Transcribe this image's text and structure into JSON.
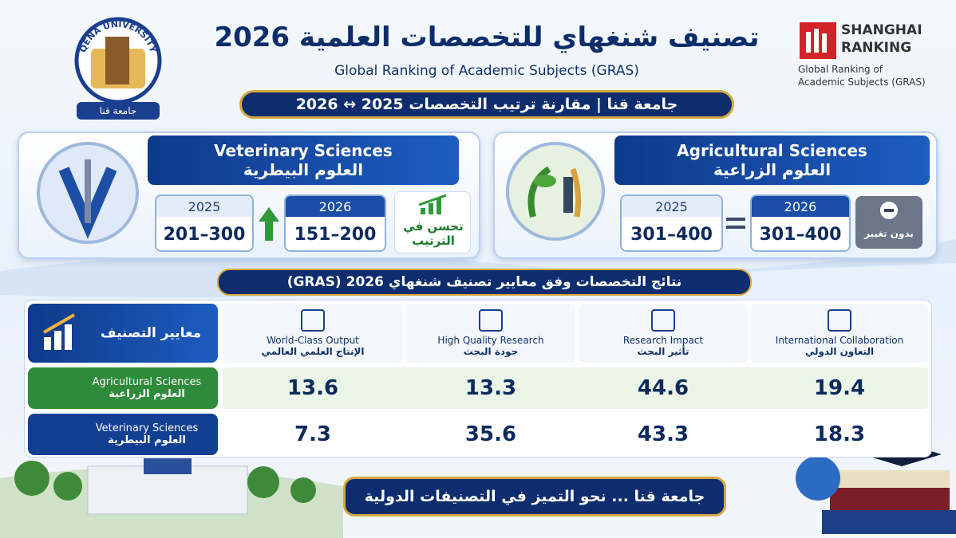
{
  "header": {
    "university_logo": {
      "arc_text": "QENA UNIVERSITY",
      "name": "جامعة قنا"
    },
    "title": "تصنيف شنغهاي للتخصصات العلمية 2026",
    "subtitle": "Global Ranking of Academic Subjects (GRAS)",
    "ribbon": "جامعة قنا | مقارنة ترتيب التخصصات 2025 ↔ 2026",
    "shanghai_logo": {
      "line1": "SHANGHAI",
      "line2": "RANKING",
      "caption_line1": "Global Ranking of",
      "caption_line2": "Academic Subjects (GRAS)"
    }
  },
  "subject_cards": [
    {
      "name_en": "Veterinary Sciences",
      "name_ar": "العلوم البيطرية",
      "rank_2025": {
        "year": "2025",
        "range": "201–300"
      },
      "rank_2026": {
        "year": "2026",
        "range": "151–200"
      },
      "status": "تحسن في الترتيب"
    },
    {
      "name_en": "Agricultural Sciences",
      "name_ar": "العلوم الزراعية",
      "rank_2025": {
        "year": "2025",
        "range": "301–400"
      },
      "rank_2026": {
        "year": "2026",
        "range": "301–400"
      },
      "status": "بدون تغيير"
    }
  ],
  "results_table": {
    "title": "نتائج التخصصات وفق معايير تصنيف شنغهاي 2026 (GRAS)",
    "corner_label": "معايير التصنيف",
    "columns": [
      {
        "en": "World-Class Output",
        "ar": "الإنتاج العلمي العالمي"
      },
      {
        "en": "High Quality Research",
        "ar": "جودة البحث"
      },
      {
        "en": "Research Impact",
        "ar": "تأثير البحث"
      },
      {
        "en": "International Collaboration",
        "ar": "التعاون الدولي"
      }
    ],
    "rows": [
      {
        "en": "Agricultural Sciences",
        "ar": "العلوم الزراعية",
        "values": [
          13.6,
          13.3,
          44.6,
          19.4
        ]
      },
      {
        "en": "Veterinary Sciences",
        "ar": "العلوم البيطرية",
        "values": [
          7.3,
          35.6,
          43.3,
          18.3
        ]
      }
    ]
  },
  "footer": {
    "slogan": "جامعة قنا ... نحو التميز في التصنيفات الدولية"
  }
}
